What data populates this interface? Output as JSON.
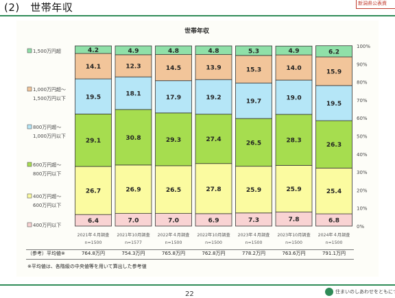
{
  "page": {
    "section_title": "(2)　世帯年収",
    "corner_stamp": "新潟県公表資",
    "page_number": "22",
    "logo_text": "住まいのしあわせをともにつ"
  },
  "chart_data": {
    "type": "bar",
    "stacked": true,
    "title": "世帯年収",
    "categories": [
      "2021年４月調査",
      "2021年10月調査",
      "2022年４月調査",
      "2022年10月調査",
      "2023年４月調査",
      "2023年10月調査",
      "2024年４月調査"
    ],
    "sample_sizes": [
      "n=1500",
      "n=1577",
      "n=1500",
      "n=1500",
      "n=1500",
      "n=1500",
      "n=1500"
    ],
    "series": [
      {
        "name": "400万円以下",
        "values": [
          6.4,
          7.0,
          7.0,
          6.9,
          7.3,
          7.8,
          6.8
        ],
        "color": "#f9d3d3"
      },
      {
        "name": "400万円超〜 600万円以下",
        "values": [
          26.7,
          26.9,
          26.5,
          27.8,
          25.9,
          25.9,
          25.4
        ],
        "color": "#fbfba0"
      },
      {
        "name": "600万円超〜 800万円以下",
        "values": [
          29.1,
          30.8,
          29.3,
          27.4,
          26.5,
          28.3,
          26.3
        ],
        "color": "#a6dd4f"
      },
      {
        "name": "800万円超〜 1,000万円以下",
        "values": [
          19.5,
          18.1,
          17.9,
          19.2,
          19.7,
          19.0,
          19.5
        ],
        "color": "#b5e6f7"
      },
      {
        "name": "1,000万円超〜 1,500万円以下",
        "values": [
          14.1,
          12.3,
          14.5,
          13.9,
          15.3,
          14.0,
          15.9
        ],
        "color": "#f2c59a"
      },
      {
        "name": "1,500万円超",
        "values": [
          4.2,
          4.9,
          4.8,
          4.8,
          5.3,
          4.9,
          6.2
        ],
        "color": "#8fe0a8"
      }
    ],
    "legend": [
      {
        "line1": "1,500万円超",
        "line2": ""
      },
      {
        "line1": "1,000万円超〜",
        "line2": "1,500万円以下"
      },
      {
        "line1": "800万円超〜",
        "line2": "1,000万円以下"
      },
      {
        "line1": "600万円超〜",
        "line2": "800万円以下"
      },
      {
        "line1": "400万円超〜",
        "line2": "600万円以下"
      },
      {
        "line1": "400万円以下",
        "line2": ""
      }
    ],
    "legend_colors": [
      "#8fe0a8",
      "#f2c59a",
      "#b5e6f7",
      "#a6dd4f",
      "#fbfba0",
      "#f9d3d3"
    ],
    "y_ticks": [
      "100%",
      "90%",
      "80%",
      "70%",
      "60%",
      "50%",
      "40%",
      "30%",
      "20%",
      "10%",
      "0%"
    ],
    "ylim": [
      0,
      100
    ],
    "legend_position": "left"
  },
  "averages": {
    "label": "（参考）平均値※",
    "values": [
      "764.8万円",
      "754.3万円",
      "765.8万円",
      "762.8万円",
      "778.2万円",
      "763.6万円",
      "791.1万円"
    ]
  },
  "footnote": "※平均値は、各階級の中央値等を用いて算出した参考値"
}
